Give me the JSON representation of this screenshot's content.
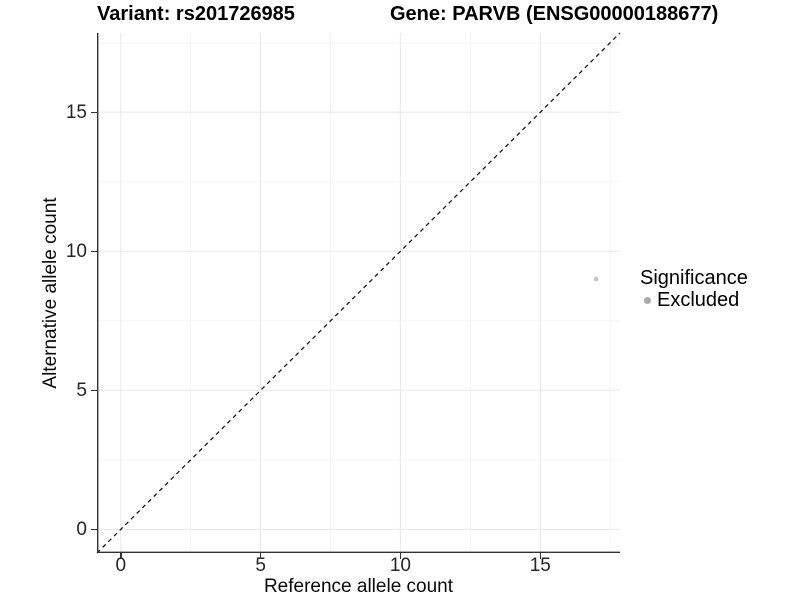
{
  "header": {
    "variant_title": "Variant: rs201726985",
    "gene_title": "Gene: PARVB (ENSG00000188677)"
  },
  "legend": {
    "title": "Significance",
    "items": [
      {
        "label": "Excluded",
        "color": "#a9a9a9"
      }
    ]
  },
  "colors": {
    "background": "#ffffff",
    "axis_line": "#333333",
    "grid_major": "#ebebeb",
    "grid_minor": "#f5f5f5",
    "tick_text": "#262626",
    "title_text": "#000000",
    "diagonal_line": "#1a1a1a",
    "point": "#c3c3c3",
    "legend_dot": "#a9a9a9"
  },
  "chart_data": {
    "type": "scatter",
    "title_left": "Variant: rs201726985",
    "title_right": "Gene: PARVB (ENSG00000188677)",
    "xlabel": "Reference allele count",
    "ylabel": "Alternative allele count",
    "xlim": [
      -0.85,
      17.85
    ],
    "ylim": [
      -0.85,
      17.85
    ],
    "x_ticks": [
      0,
      5,
      10,
      15
    ],
    "y_ticks": [
      0,
      5,
      10,
      15
    ],
    "x_minor": [
      2.5,
      7.5,
      12.5,
      17.5
    ],
    "y_minor": [
      2.5,
      7.5,
      12.5,
      17.5
    ],
    "grid": true,
    "legend_position": "right",
    "identity_line": {
      "type": "abline",
      "slope": 1,
      "intercept": 0,
      "style": "dashed"
    },
    "series": [
      {
        "name": "Excluded",
        "color": "#c3c3c3",
        "points": [
          [
            17,
            9
          ]
        ]
      }
    ]
  }
}
